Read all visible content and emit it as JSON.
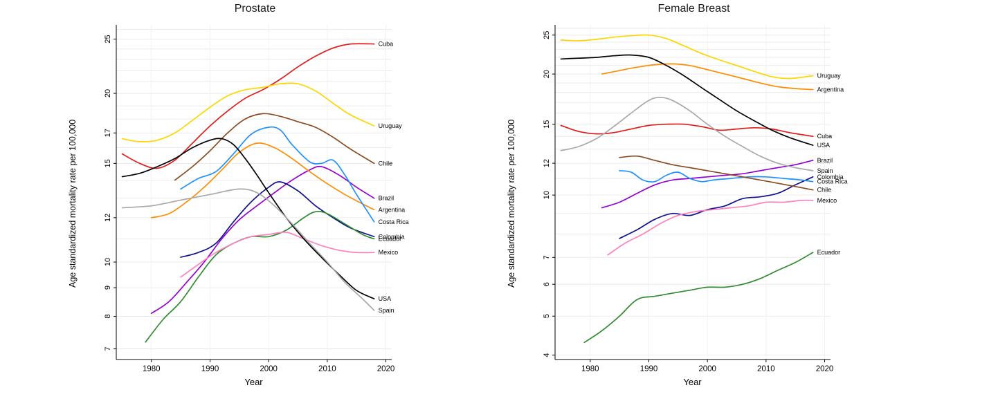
{
  "page": {
    "background": "#ffffff"
  },
  "chart_data": [
    {
      "type": "line",
      "title": "Prostate",
      "xlabel": "Year",
      "ylabel": "Age standardized mortality rate per 100,000",
      "y_scale": "log",
      "grid": true,
      "legend_position": "line-end-labels-right",
      "xlim": [
        1974,
        2021
      ],
      "ylim": [
        6.7,
        26.5
      ],
      "x_ticks": [
        1980,
        1990,
        2000,
        2010,
        2020
      ],
      "y_ticks": [
        7,
        8,
        9,
        10,
        12,
        15,
        17,
        20,
        25
      ],
      "series": [
        {
          "name": "Cuba",
          "color": "#e31a1a",
          "x": [
            1975,
            1978,
            1981,
            1984,
            1987,
            1990,
            1993,
            1996,
            1999,
            2002,
            2005,
            2008,
            2011,
            2014,
            2018
          ],
          "y": [
            15.6,
            15.0,
            14.7,
            15.2,
            16.3,
            17.5,
            18.6,
            19.6,
            20.3,
            21.2,
            22.3,
            23.3,
            24.1,
            24.5,
            24.5
          ]
        },
        {
          "name": "Uruguay",
          "color": "#ffd500",
          "x": [
            1975,
            1978,
            1981,
            1984,
            1987,
            1990,
            1993,
            1996,
            1999,
            2002,
            2005,
            2008,
            2011,
            2014,
            2018
          ],
          "y": [
            16.6,
            16.4,
            16.5,
            17.0,
            17.9,
            18.9,
            19.8,
            20.3,
            20.5,
            20.8,
            20.8,
            20.2,
            19.2,
            18.3,
            17.5
          ]
        },
        {
          "name": "Chile",
          "color": "#8a4a1f",
          "x": [
            1984,
            1987,
            1990,
            1993,
            1996,
            1999,
            2002,
            2005,
            2008,
            2011,
            2014,
            2018
          ],
          "y": [
            14.0,
            14.8,
            15.8,
            17.0,
            18.0,
            18.4,
            18.2,
            17.8,
            17.4,
            16.7,
            15.9,
            15.0
          ]
        },
        {
          "name": "Brazil",
          "color": "#9400d3",
          "x": [
            1980,
            1983,
            1986,
            1989,
            1992,
            1995,
            1998,
            2001,
            2004,
            2007,
            2009,
            2012,
            2015,
            2018
          ],
          "y": [
            8.1,
            8.5,
            9.2,
            10.0,
            11.0,
            11.9,
            12.6,
            13.3,
            14.0,
            14.6,
            14.8,
            14.3,
            13.6,
            13.0
          ]
        },
        {
          "name": "Argentina",
          "color": "#ff8c00",
          "x": [
            1980,
            1983,
            1986,
            1989,
            1992,
            1995,
            1998,
            2001,
            2004,
            2007,
            2010,
            2013,
            2016,
            2018
          ],
          "y": [
            12.0,
            12.2,
            12.8,
            13.6,
            14.6,
            15.7,
            16.3,
            16.0,
            15.3,
            14.5,
            13.8,
            13.2,
            12.7,
            12.4
          ]
        },
        {
          "name": "Costa Rica",
          "color": "#1e90ff",
          "x": [
            1985,
            1988,
            1991,
            1994,
            1997,
            2000,
            2002,
            2004,
            2007,
            2009,
            2011,
            2013,
            2015,
            2018
          ],
          "y": [
            13.5,
            14.1,
            14.5,
            15.6,
            16.9,
            17.4,
            17.2,
            16.2,
            15.1,
            15.0,
            15.2,
            14.3,
            13.2,
            11.8
          ]
        },
        {
          "name": "Colombia",
          "color": "#10108f",
          "x": [
            1985,
            1988,
            1991,
            1994,
            1997,
            2000,
            2002,
            2005,
            2008,
            2011,
            2014,
            2018
          ],
          "y": [
            10.2,
            10.4,
            10.8,
            11.8,
            12.8,
            13.6,
            13.9,
            13.4,
            12.6,
            12.0,
            11.5,
            11.1
          ]
        },
        {
          "name": "Ecuador",
          "color": "#2e8b2e",
          "x": [
            1979,
            1982,
            1985,
            1988,
            1991,
            1994,
            1997,
            2000,
            2003,
            2006,
            2008,
            2010,
            2013,
            2016,
            2018
          ],
          "y": [
            7.2,
            7.9,
            8.5,
            9.4,
            10.3,
            10.8,
            11.1,
            11.1,
            11.4,
            12.0,
            12.3,
            12.2,
            11.7,
            11.2,
            11.0
          ]
        },
        {
          "name": "Mexico",
          "color": "#ff7fbf",
          "x": [
            1985,
            1988,
            1991,
            1994,
            1997,
            2000,
            2003,
            2006,
            2009,
            2012,
            2015,
            2018
          ],
          "y": [
            9.4,
            9.9,
            10.4,
            10.8,
            11.1,
            11.2,
            11.3,
            11.0,
            10.7,
            10.5,
            10.4,
            10.4
          ]
        },
        {
          "name": "USA",
          "color": "#000000",
          "x": [
            1975,
            1978,
            1981,
            1984,
            1987,
            1990,
            1992,
            1994,
            1996,
            1998,
            2000,
            2003,
            2006,
            2009,
            2012,
            2015,
            2018
          ],
          "y": [
            14.2,
            14.4,
            14.8,
            15.3,
            16.0,
            16.5,
            16.6,
            16.2,
            15.3,
            14.3,
            13.3,
            12.0,
            11.0,
            10.2,
            9.5,
            8.9,
            8.6
          ]
        },
        {
          "name": "Spain",
          "color": "#a8a8a8",
          "x": [
            1975,
            1980,
            1985,
            1990,
            1995,
            1998,
            2001,
            2004,
            2007,
            2010,
            2013,
            2016,
            2018
          ],
          "y": [
            12.5,
            12.6,
            12.9,
            13.2,
            13.5,
            13.3,
            12.6,
            11.7,
            10.8,
            10.0,
            9.2,
            8.6,
            8.2
          ]
        }
      ]
    },
    {
      "type": "line",
      "title": "Female Breast",
      "xlabel": "Year",
      "ylabel": "Age standardized mortality rate per 100,000",
      "y_scale": "log",
      "grid": true,
      "legend_position": "line-end-labels-right",
      "xlim": [
        1974,
        2021
      ],
      "ylim": [
        3.9,
        26.5
      ],
      "x_ticks": [
        1980,
        1990,
        2000,
        2010,
        2020
      ],
      "y_ticks": [
        4,
        5,
        6,
        7,
        10,
        12,
        15,
        20,
        25
      ],
      "series": [
        {
          "name": "Uruguay",
          "color": "#ffd500",
          "x": [
            1975,
            1978,
            1981,
            1984,
            1987,
            1990,
            1993,
            1996,
            1999,
            2002,
            2005,
            2008,
            2011,
            2014,
            2018
          ],
          "y": [
            24.3,
            24.2,
            24.4,
            24.7,
            24.9,
            25.0,
            24.5,
            23.5,
            22.5,
            21.7,
            21.0,
            20.3,
            19.7,
            19.5,
            19.8
          ]
        },
        {
          "name": "Argentina",
          "color": "#ff8c00",
          "x": [
            1982,
            1985,
            1988,
            1991,
            1994,
            1997,
            2000,
            2003,
            2006,
            2009,
            2012,
            2015,
            2018
          ],
          "y": [
            20.0,
            20.4,
            20.8,
            21.1,
            21.2,
            21.0,
            20.5,
            20.0,
            19.5,
            19.0,
            18.6,
            18.4,
            18.3
          ]
        },
        {
          "name": "Cuba",
          "color": "#e31a1a",
          "x": [
            1975,
            1978,
            1981,
            1984,
            1987,
            1990,
            1993,
            1996,
            1999,
            2002,
            2005,
            2008,
            2011,
            2014,
            2018
          ],
          "y": [
            14.9,
            14.4,
            14.2,
            14.3,
            14.6,
            14.9,
            15.0,
            15.0,
            14.8,
            14.5,
            14.6,
            14.7,
            14.6,
            14.3,
            14.0
          ]
        },
        {
          "name": "USA",
          "color": "#000000",
          "x": [
            1975,
            1978,
            1981,
            1984,
            1987,
            1990,
            1993,
            1996,
            1999,
            2002,
            2005,
            2008,
            2011,
            2014,
            2018
          ],
          "y": [
            21.8,
            21.9,
            22.0,
            22.2,
            22.3,
            22.0,
            21.0,
            19.8,
            18.5,
            17.3,
            16.2,
            15.3,
            14.5,
            13.9,
            13.3
          ]
        },
        {
          "name": "Brazil",
          "color": "#9400d3",
          "x": [
            1982,
            1985,
            1988,
            1991,
            1994,
            1997,
            2000,
            2003,
            2006,
            2009,
            2012,
            2015,
            2018
          ],
          "y": [
            9.3,
            9.6,
            10.1,
            10.6,
            10.9,
            11.0,
            11.1,
            11.2,
            11.3,
            11.5,
            11.7,
            11.9,
            12.2
          ]
        },
        {
          "name": "Spain",
          "color": "#a8a8a8",
          "x": [
            1975,
            1978,
            1981,
            1984,
            1987,
            1990,
            1992,
            1994,
            1997,
            2000,
            2003,
            2006,
            2009,
            2012,
            2015,
            2018
          ],
          "y": [
            12.9,
            13.2,
            13.8,
            14.8,
            16.0,
            17.2,
            17.5,
            17.2,
            16.2,
            15.0,
            14.0,
            13.2,
            12.5,
            12.0,
            11.7,
            11.5
          ]
        },
        {
          "name": "Colombia",
          "color": "#10108f",
          "x": [
            1985,
            1988,
            1991,
            1994,
            1997,
            2000,
            2003,
            2006,
            2009,
            2012,
            2015,
            2018
          ],
          "y": [
            7.8,
            8.2,
            8.7,
            9.0,
            8.9,
            9.2,
            9.4,
            9.8,
            9.9,
            10.1,
            10.6,
            11.1
          ]
        },
        {
          "name": "Costa Rica",
          "color": "#1e90ff",
          "x": [
            1985,
            1987,
            1989,
            1991,
            1993,
            1995,
            1997,
            1999,
            2001,
            2004,
            2007,
            2010,
            2013,
            2016,
            2018
          ],
          "y": [
            11.5,
            11.4,
            10.9,
            10.8,
            11.2,
            11.4,
            11.0,
            10.8,
            10.9,
            11.0,
            11.1,
            11.1,
            11.0,
            10.9,
            10.8
          ]
        },
        {
          "name": "Chile",
          "color": "#8a4a1f",
          "x": [
            1985,
            1988,
            1991,
            1994,
            1997,
            2000,
            2003,
            2006,
            2009,
            2012,
            2015,
            2018
          ],
          "y": [
            12.4,
            12.5,
            12.2,
            11.9,
            11.7,
            11.5,
            11.3,
            11.1,
            10.9,
            10.7,
            10.5,
            10.3
          ]
        },
        {
          "name": "Mexico",
          "color": "#ff7fbf",
          "x": [
            1983,
            1986,
            1989,
            1992,
            1995,
            1998,
            2001,
            2004,
            2007,
            2010,
            2013,
            2016,
            2018
          ],
          "y": [
            7.1,
            7.6,
            8.0,
            8.5,
            8.9,
            9.1,
            9.2,
            9.3,
            9.4,
            9.6,
            9.6,
            9.7,
            9.7
          ]
        },
        {
          "name": "Ecuador",
          "color": "#2e8b2e",
          "x": [
            1979,
            1982,
            1985,
            1988,
            1991,
            1994,
            1997,
            2000,
            2003,
            2006,
            2009,
            2012,
            2015,
            2018
          ],
          "y": [
            4.3,
            4.6,
            5.0,
            5.5,
            5.6,
            5.7,
            5.8,
            5.9,
            5.9,
            6.0,
            6.2,
            6.5,
            6.8,
            7.2
          ]
        }
      ]
    }
  ]
}
